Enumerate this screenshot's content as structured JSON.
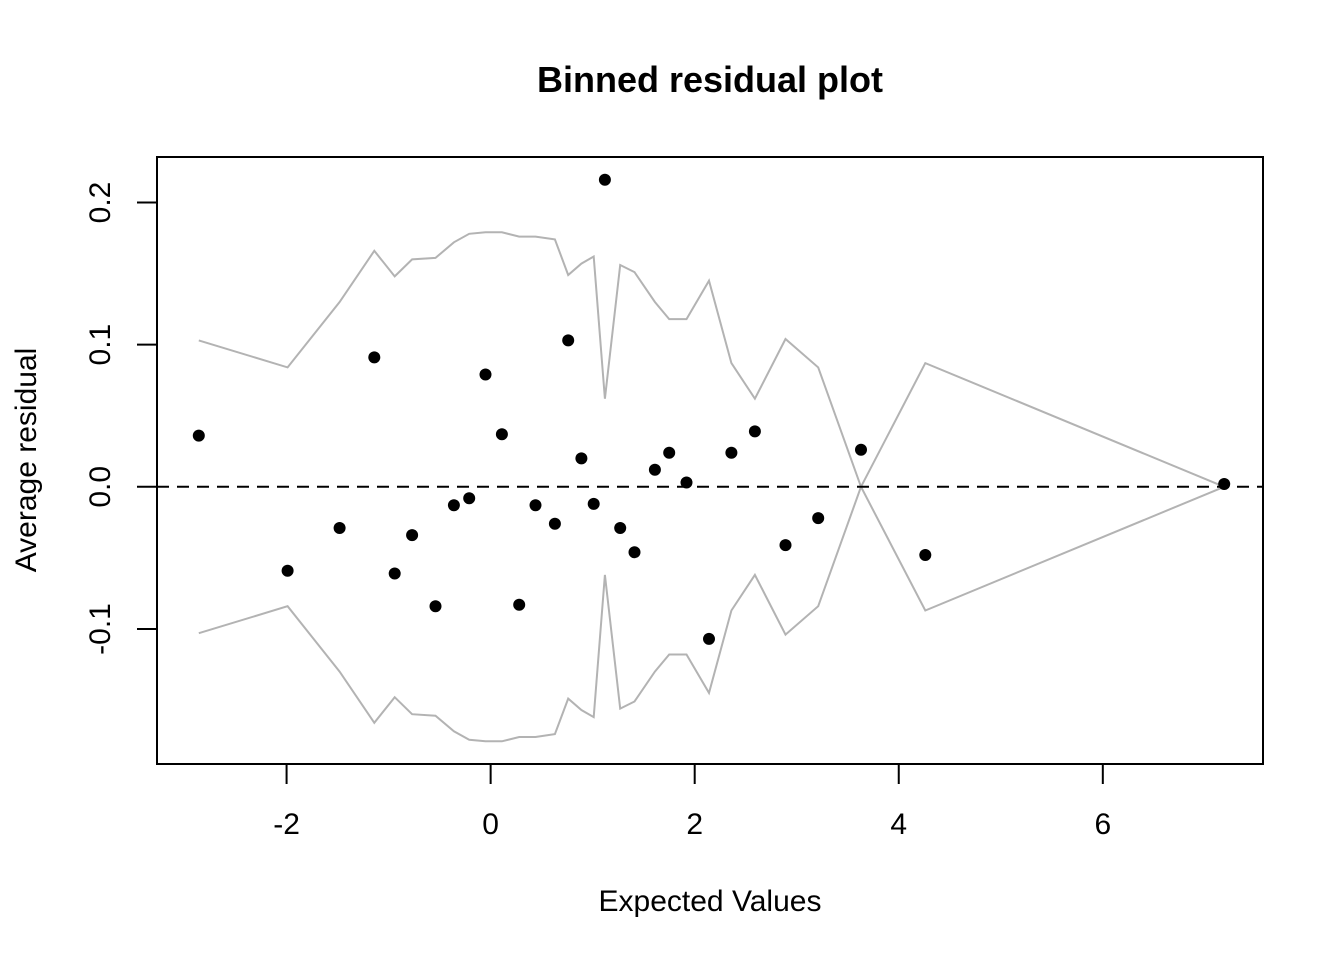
{
  "chart_data": {
    "type": "scatter",
    "title": "Binned residual plot",
    "xlabel": "Expected Values",
    "ylabel": "Average residual",
    "xlim": [
      -3.27,
      7.57
    ],
    "ylim": [
      -0.195,
      0.232
    ],
    "x_ticks": [
      -2,
      0,
      2,
      4,
      6
    ],
    "x_tick_labels": [
      "-2",
      "0",
      "2",
      "4",
      "6"
    ],
    "y_ticks": [
      -0.1,
      0.0,
      0.1,
      0.2
    ],
    "y_tick_labels": [
      "-0.1",
      "0.0",
      "0.1",
      "0.2"
    ],
    "grid": false,
    "reference_line": {
      "y": 0,
      "style": "dashed",
      "color": "#000000"
    },
    "points": {
      "color": "#000000",
      "x": [
        -2.86,
        -1.99,
        -1.48,
        -1.14,
        -0.94,
        -0.77,
        -0.54,
        -0.36,
        -0.21,
        -0.05,
        0.11,
        0.28,
        0.44,
        0.63,
        0.76,
        0.89,
        1.01,
        1.12,
        1.27,
        1.41,
        1.61,
        1.75,
        1.92,
        2.14,
        2.36,
        2.59,
        2.89,
        3.21,
        3.63,
        4.26,
        7.19
      ],
      "y": [
        0.036,
        -0.059,
        -0.029,
        0.091,
        -0.061,
        -0.034,
        -0.084,
        -0.013,
        -0.008,
        0.079,
        0.037,
        -0.083,
        -0.013,
        -0.026,
        0.103,
        0.02,
        -0.012,
        0.216,
        -0.029,
        -0.046,
        0.012,
        0.024,
        0.003,
        -0.107,
        0.024,
        0.039,
        -0.041,
        -0.022,
        0.026,
        -0.048,
        0.002
      ]
    },
    "band": {
      "color": "#b3b3b3",
      "x": [
        -2.86,
        -1.99,
        -1.48,
        -1.14,
        -0.94,
        -0.77,
        -0.54,
        -0.36,
        -0.21,
        -0.05,
        0.11,
        0.28,
        0.44,
        0.63,
        0.76,
        0.89,
        1.01,
        1.12,
        1.27,
        1.41,
        1.61,
        1.75,
        1.92,
        2.14,
        2.36,
        2.59,
        2.89,
        3.21,
        3.63,
        4.26,
        7.19
      ],
      "upper": [
        0.103,
        0.084,
        0.13,
        0.166,
        0.148,
        0.16,
        0.161,
        0.172,
        0.178,
        0.179,
        0.179,
        0.176,
        0.176,
        0.174,
        0.149,
        0.157,
        0.162,
        0.062,
        0.156,
        0.151,
        0.13,
        0.118,
        0.118,
        0.145,
        0.087,
        0.062,
        0.104,
        0.084,
        0.0,
        0.087,
        0.0
      ]
    }
  }
}
